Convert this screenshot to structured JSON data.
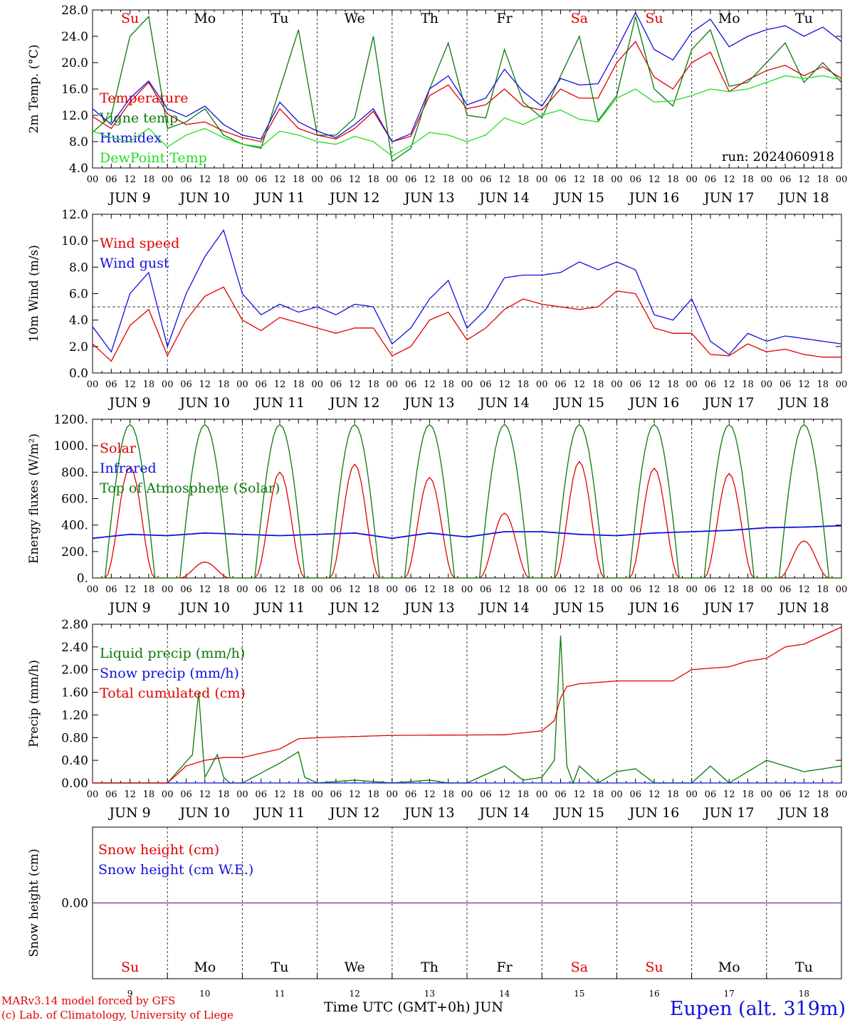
{
  "footer": {
    "model": "MARv3.14 model forced by GFS",
    "lab": "(c) Lab. of Climatology, University of Liege",
    "xlabel": "Time UTC (GMT+0h) JUN",
    "station": "Eupen (alt. 319m)"
  },
  "colors": {
    "red": "#e00000",
    "green": "#0a7a0a",
    "blue": "#1010e0",
    "lime": "#22dd22",
    "purple": "#8040a0"
  },
  "days": {
    "weekday": [
      "Su",
      "Mo",
      "Tu",
      "We",
      "Th",
      "Fr",
      "Sa",
      "Su",
      "Mo",
      "Tu"
    ],
    "weekend": [
      true,
      false,
      false,
      false,
      false,
      false,
      true,
      true,
      false,
      false
    ],
    "date_labels": [
      "JUN  9",
      "JUN 10",
      "JUN 11",
      "JUN 12",
      "JUN 13",
      "JUN 14",
      "JUN 15",
      "JUN 16",
      "JUN 17",
      "JUN 18"
    ],
    "numbers": [
      "9",
      "10",
      "11",
      "12",
      "13",
      "14",
      "15",
      "16",
      "17",
      "18"
    ],
    "hour_ticks": [
      "00",
      "06",
      "12",
      "18"
    ],
    "end_tick": "00"
  },
  "chart_data": [
    {
      "type": "line",
      "ylabel": "2m Temp. (°C)",
      "ylim": [
        4,
        28
      ],
      "yticks": [
        "4.0",
        "8.0",
        "12.0",
        "16.0",
        "20.0",
        "24.0",
        "28.0"
      ],
      "annotation": "run: 2024060918",
      "x_unit": "hours since 2024-06-09 00 UTC",
      "series": [
        {
          "name": "Temperature",
          "color": "red",
          "x": [
            0,
            6,
            12,
            18,
            24,
            30,
            36,
            42,
            48,
            54,
            60,
            66,
            72,
            78,
            84,
            90,
            96,
            102,
            108,
            114,
            120,
            126,
            132,
            138,
            144,
            150,
            156,
            162,
            168,
            174,
            180,
            186,
            192,
            198,
            204,
            210,
            216,
            222,
            228,
            234,
            240
          ],
          "y": [
            11.8,
            10.0,
            14.0,
            17.0,
            12.2,
            10.6,
            11.0,
            9.6,
            8.6,
            8.0,
            13.0,
            10.0,
            9.0,
            8.4,
            10.0,
            12.6,
            8.0,
            8.8,
            15.0,
            16.6,
            13.0,
            13.6,
            16.0,
            13.4,
            12.8,
            16.0,
            14.6,
            14.6,
            20.0,
            23.2,
            17.8,
            16.0,
            20.0,
            21.6,
            15.6,
            17.4,
            18.8,
            19.6,
            18.0,
            19.4,
            17.6
          ]
        },
        {
          "name": "Vigne temp",
          "color": "green",
          "x": [
            0,
            6,
            12,
            18,
            24,
            30,
            36,
            42,
            48,
            54,
            60,
            66,
            72,
            78,
            84,
            90,
            96,
            102,
            108,
            114,
            120,
            126,
            132,
            138,
            144,
            150,
            156,
            162,
            168,
            174,
            180,
            186,
            192,
            198,
            204,
            210,
            216,
            222,
            228,
            234,
            240
          ],
          "y": [
            9.4,
            12.0,
            24.0,
            27.0,
            10.0,
            11.0,
            13.0,
            9.0,
            7.6,
            7.0,
            16.0,
            25.0,
            9.0,
            9.0,
            11.6,
            24.0,
            5.0,
            7.0,
            16.0,
            23.0,
            12.0,
            11.6,
            22.0,
            14.0,
            11.6,
            18.0,
            24.0,
            11.2,
            15.0,
            27.0,
            16.0,
            13.4,
            22.0,
            25.0,
            16.4,
            17.0,
            20.0,
            23.0,
            17.0,
            20.0,
            17.0
          ]
        },
        {
          "name": "Humidex",
          "color": "blue",
          "x": [
            0,
            6,
            12,
            18,
            24,
            30,
            36,
            42,
            48,
            54,
            60,
            66,
            72,
            78,
            84,
            90,
            96,
            102,
            108,
            114,
            120,
            126,
            132,
            138,
            144,
            150,
            156,
            162,
            168,
            174,
            180,
            186,
            192,
            198,
            204,
            210,
            216,
            222,
            228,
            234,
            240
          ],
          "y": [
            13.0,
            10.6,
            14.6,
            17.2,
            13.0,
            11.8,
            13.4,
            10.6,
            9.0,
            8.4,
            14.0,
            11.0,
            9.6,
            8.6,
            10.6,
            13.0,
            8.0,
            9.2,
            16.0,
            18.0,
            13.6,
            14.6,
            19.0,
            15.6,
            13.4,
            17.6,
            16.6,
            16.8,
            22.0,
            27.6,
            22.0,
            20.4,
            24.6,
            26.6,
            22.4,
            24.0,
            25.0,
            25.6,
            24.0,
            25.4,
            23.2
          ]
        },
        {
          "name": "DewPoint Temp",
          "color": "lime",
          "x": [
            0,
            6,
            12,
            18,
            24,
            30,
            36,
            42,
            48,
            54,
            60,
            66,
            72,
            78,
            84,
            90,
            96,
            102,
            108,
            114,
            120,
            126,
            132,
            138,
            144,
            150,
            156,
            162,
            168,
            174,
            180,
            186,
            192,
            198,
            204,
            210,
            216,
            222,
            228,
            234,
            240
          ],
          "y": [
            9.6,
            8.6,
            8.0,
            10.0,
            7.2,
            9.0,
            10.0,
            8.6,
            7.6,
            7.2,
            9.6,
            9.0,
            8.0,
            7.6,
            8.8,
            8.0,
            5.8,
            7.4,
            9.4,
            9.0,
            8.0,
            9.0,
            11.6,
            10.6,
            12.0,
            12.8,
            11.4,
            11.0,
            14.6,
            16.0,
            14.0,
            14.2,
            15.0,
            16.0,
            15.6,
            16.0,
            17.0,
            18.0,
            17.6,
            18.0,
            17.4
          ]
        }
      ]
    },
    {
      "type": "line",
      "ylabel": "10m Wind (m/s)",
      "ylim": [
        0,
        12
      ],
      "yticks": [
        "0.0",
        "2.0",
        "4.0",
        "6.0",
        "8.0",
        "10.0",
        "12.0"
      ],
      "reference_line": 5.0,
      "series": [
        {
          "name": "Wind speed",
          "color": "red",
          "x": [
            0,
            6,
            12,
            18,
            24,
            30,
            36,
            42,
            48,
            54,
            60,
            66,
            72,
            78,
            84,
            90,
            96,
            102,
            108,
            114,
            120,
            126,
            132,
            138,
            144,
            150,
            156,
            162,
            168,
            174,
            180,
            186,
            192,
            198,
            204,
            210,
            216,
            222,
            228,
            234,
            240
          ],
          "y": [
            2.2,
            0.9,
            3.6,
            4.8,
            1.3,
            4.0,
            5.8,
            6.5,
            4.0,
            3.2,
            4.2,
            3.8,
            3.4,
            3.0,
            3.4,
            3.4,
            1.3,
            2.0,
            4.0,
            4.6,
            2.5,
            3.4,
            4.8,
            5.6,
            5.2,
            5.0,
            4.8,
            5.0,
            6.2,
            6.0,
            3.4,
            3.0,
            3.0,
            1.4,
            1.3,
            2.2,
            1.6,
            1.8,
            1.4,
            1.2,
            1.2
          ]
        },
        {
          "name": "Wind gust",
          "color": "blue",
          "x": [
            0,
            6,
            12,
            18,
            24,
            30,
            36,
            42,
            48,
            54,
            60,
            66,
            72,
            78,
            84,
            90,
            96,
            102,
            108,
            114,
            120,
            126,
            132,
            138,
            144,
            150,
            156,
            162,
            168,
            174,
            180,
            186,
            192,
            198,
            204,
            210,
            216,
            222,
            228,
            234,
            240
          ],
          "y": [
            3.5,
            1.6,
            6.0,
            7.6,
            2.0,
            6.0,
            8.8,
            10.8,
            6.0,
            4.4,
            5.2,
            4.6,
            5.0,
            4.4,
            5.2,
            5.0,
            2.2,
            3.4,
            5.6,
            7.0,
            3.4,
            4.8,
            7.2,
            7.4,
            7.4,
            7.6,
            8.4,
            7.8,
            8.4,
            7.8,
            4.4,
            4.0,
            5.6,
            2.4,
            1.4,
            3.0,
            2.4,
            2.8,
            2.6,
            2.4,
            2.2
          ]
        }
      ]
    },
    {
      "type": "line",
      "ylabel": "Energy fluxes (W/m²)",
      "ylim": [
        0,
        1200
      ],
      "yticks": [
        "0.",
        "200.",
        "400.",
        "600.",
        "800.",
        "1000.",
        "1200."
      ],
      "series": [
        {
          "name": "Solar",
          "color": "red",
          "day_peaks": [
            840,
            120,
            800,
            860,
            760,
            490,
            880,
            830,
            790,
            280
          ]
        },
        {
          "name": "Infrared",
          "color": "blue",
          "x": [
            0,
            12,
            24,
            36,
            48,
            60,
            72,
            84,
            96,
            108,
            120,
            132,
            144,
            156,
            168,
            180,
            192,
            204,
            216,
            228,
            240
          ],
          "y": [
            300,
            330,
            320,
            340,
            330,
            320,
            330,
            340,
            300,
            340,
            310,
            350,
            350,
            330,
            320,
            340,
            350,
            360,
            380,
            385,
            395
          ]
        },
        {
          "name": "Top of Atmosphere (Solar)",
          "color": "green",
          "daily_max": 1160,
          "sunrise_hour": 4,
          "sunset_hour": 20
        }
      ]
    },
    {
      "type": "line",
      "ylabel": "Precip (mm/h)",
      "ylim": [
        0,
        2.8
      ],
      "yticks": [
        "0.00",
        "0.40",
        "0.80",
        "1.20",
        "1.60",
        "2.00",
        "2.40",
        "2.80"
      ],
      "series": [
        {
          "name": "Liquid precip (mm/h)",
          "color": "green",
          "x": [
            0,
            24,
            32,
            34,
            36,
            40,
            42,
            44,
            48,
            60,
            66,
            68,
            72,
            84,
            96,
            108,
            114,
            120,
            132,
            138,
            144,
            148,
            150,
            152,
            154,
            156,
            162,
            168,
            174,
            180,
            192,
            198,
            204,
            216,
            222,
            228,
            240
          ],
          "y": [
            0,
            0,
            0.5,
            1.6,
            0.1,
            0.5,
            0.1,
            0,
            0,
            0.35,
            0.55,
            0.1,
            0,
            0.05,
            0,
            0.05,
            0,
            0,
            0.3,
            0.05,
            0.1,
            0.4,
            2.6,
            0.3,
            0,
            0.3,
            0,
            0.2,
            0.25,
            0,
            0,
            0.3,
            0,
            0.4,
            0.3,
            0.2,
            0.3
          ]
        },
        {
          "name": "Snow precip (mm/h)",
          "color": "blue",
          "x": [
            0,
            240
          ],
          "y": [
            0,
            0
          ]
        },
        {
          "name": "Total cumulated (cm)",
          "color": "red",
          "x": [
            0,
            24,
            30,
            36,
            42,
            48,
            56,
            60,
            66,
            72,
            96,
            132,
            144,
            148,
            150,
            152,
            156,
            168,
            186,
            192,
            204,
            210,
            216,
            222,
            228,
            234,
            240
          ],
          "y": [
            0,
            0,
            0.3,
            0.4,
            0.45,
            0.45,
            0.55,
            0.6,
            0.78,
            0.8,
            0.84,
            0.85,
            0.92,
            1.1,
            1.5,
            1.7,
            1.75,
            1.8,
            1.8,
            2.0,
            2.05,
            2.15,
            2.2,
            2.4,
            2.45,
            2.6,
            2.75
          ]
        }
      ]
    },
    {
      "type": "line",
      "ylabel": "Snow height (cm)",
      "yticks": [
        "0.00"
      ],
      "series": [
        {
          "name": "Snow height (cm)",
          "color": "red",
          "x": [
            0,
            240
          ],
          "y": [
            0,
            0
          ]
        },
        {
          "name": "Snow height (cm W.E.)",
          "color": "blue",
          "x": [
            0,
            240
          ],
          "y": [
            0,
            0
          ]
        }
      ]
    }
  ]
}
